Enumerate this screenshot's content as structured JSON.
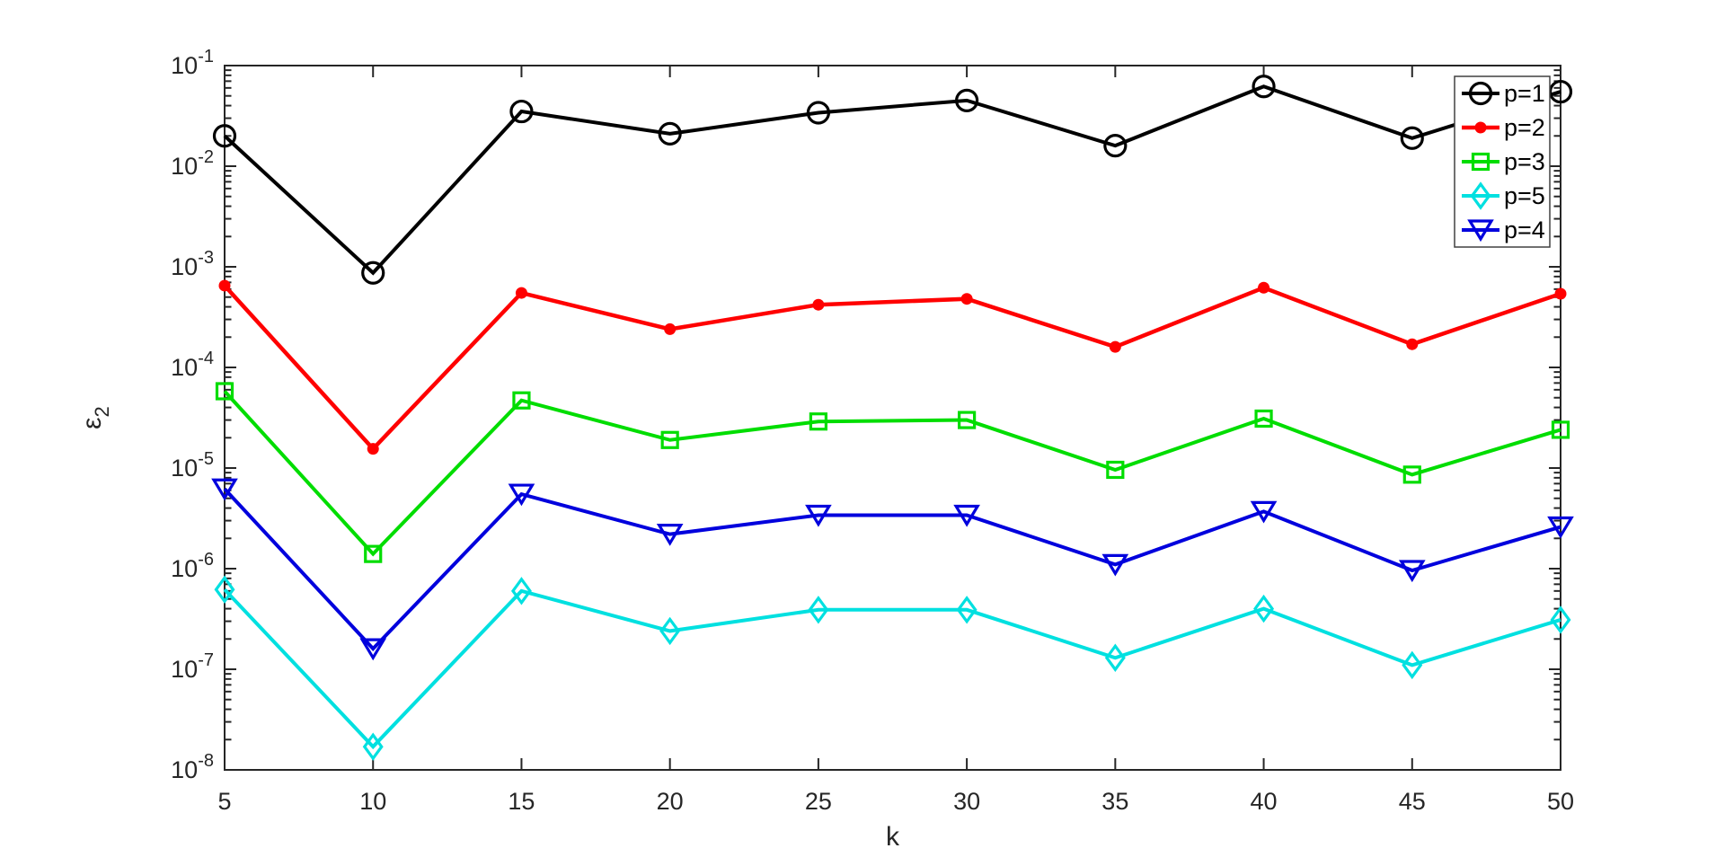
{
  "figure": {
    "background": "#ffffff",
    "axes_color": "#262626",
    "tick_label_color": "#262626",
    "legend_border_color": "#404040",
    "legend_background": "#ffffff",
    "legend_text_color": "#000000"
  },
  "chart_data": {
    "type": "line",
    "title": "",
    "xlabel": "k",
    "ylabel": {
      "base": "ε",
      "sub": "2"
    },
    "x_scale": "linear",
    "y_scale": "log",
    "xlim": [
      5,
      50
    ],
    "ylim": [
      1e-08,
      0.1
    ],
    "xticks": [
      5,
      10,
      15,
      20,
      25,
      30,
      35,
      40,
      45,
      50
    ],
    "ytick_exponents": [
      -1,
      -2,
      -3,
      -4,
      -5,
      -6,
      -7,
      -8
    ],
    "grid": false,
    "legend_position": "northeast",
    "x": [
      5,
      10,
      15,
      20,
      25,
      30,
      35,
      40,
      45,
      50
    ],
    "series": [
      {
        "name": "p=1",
        "color": "#000000",
        "marker": "circle",
        "marker_filled": false,
        "line_width": 4.0,
        "values": [
          0.02,
          0.00087,
          0.035,
          0.021,
          0.034,
          0.045,
          0.016,
          0.062,
          0.019,
          0.055
        ]
      },
      {
        "name": "p=2",
        "color": "#ff0000",
        "marker": "dot",
        "marker_filled": true,
        "line_width": 4.5,
        "values": [
          0.00065,
          1.55e-05,
          0.00055,
          0.00024,
          0.00042,
          0.00048,
          0.00016,
          0.00062,
          0.00017,
          0.00054
        ]
      },
      {
        "name": "p=3",
        "color": "#00dd00",
        "marker": "square",
        "marker_filled": false,
        "line_width": 4.0,
        "values": [
          5.8e-05,
          1.4e-06,
          4.7e-05,
          1.9e-05,
          2.9e-05,
          3e-05,
          9.6e-06,
          3.1e-05,
          8.6e-06,
          2.4e-05
        ]
      },
      {
        "name": "p=5",
        "color": "#00e0e0",
        "marker": "diamond",
        "marker_filled": false,
        "line_width": 4.0,
        "values": [
          6.2e-07,
          1.7e-08,
          6e-07,
          2.4e-07,
          3.9e-07,
          3.9e-07,
          1.3e-07,
          4e-07,
          1.1e-07,
          3.1e-07
        ]
      },
      {
        "name": "p=4",
        "color": "#0000dd",
        "marker": "triangle-down",
        "marker_filled": false,
        "line_width": 4.0,
        "values": [
          6.2e-06,
          1.6e-07,
          5.5e-06,
          2.2e-06,
          3.4e-06,
          3.4e-06,
          1.1e-06,
          3.7e-06,
          9.6e-07,
          2.6e-06
        ]
      }
    ],
    "legend": [
      "p=1",
      "p=2",
      "p=3",
      "p=5",
      "p=4"
    ]
  }
}
